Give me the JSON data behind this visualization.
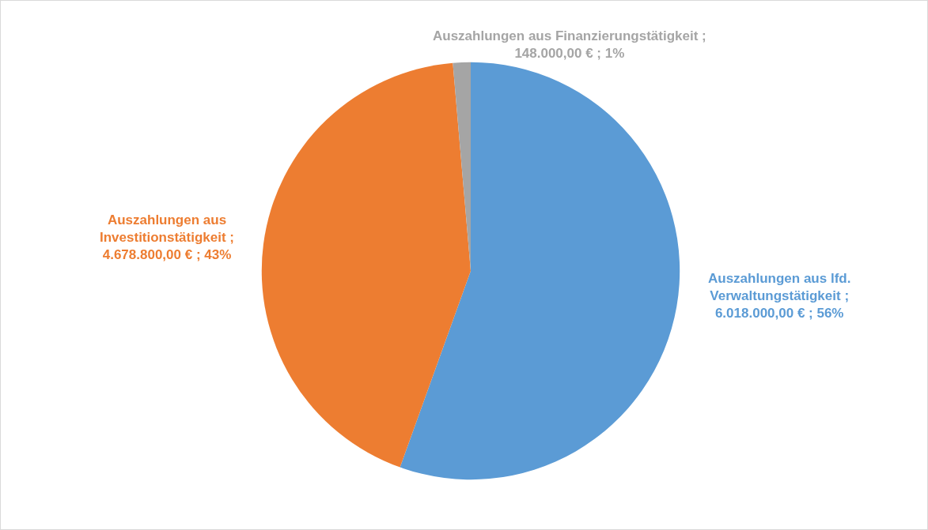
{
  "chart_data": {
    "type": "pie",
    "categories": [
      "Auszahlungen aus lfd. Verwaltungstätigkeit",
      "Auszahlungen aus Investitionstätigkeit",
      "Auszahlungen aus Finanzierungstätigkeit"
    ],
    "values": [
      6018000,
      4678800,
      148000
    ],
    "colors": [
      "#5b9bd5",
      "#ed7d31",
      "#a5a5a5"
    ],
    "value_labels": [
      "; 6.018.000,00 € ; 56%",
      "; 4.678.800,00 € ; 43%",
      "; 148.000,00 € ; 1%"
    ],
    "legend": false
  }
}
